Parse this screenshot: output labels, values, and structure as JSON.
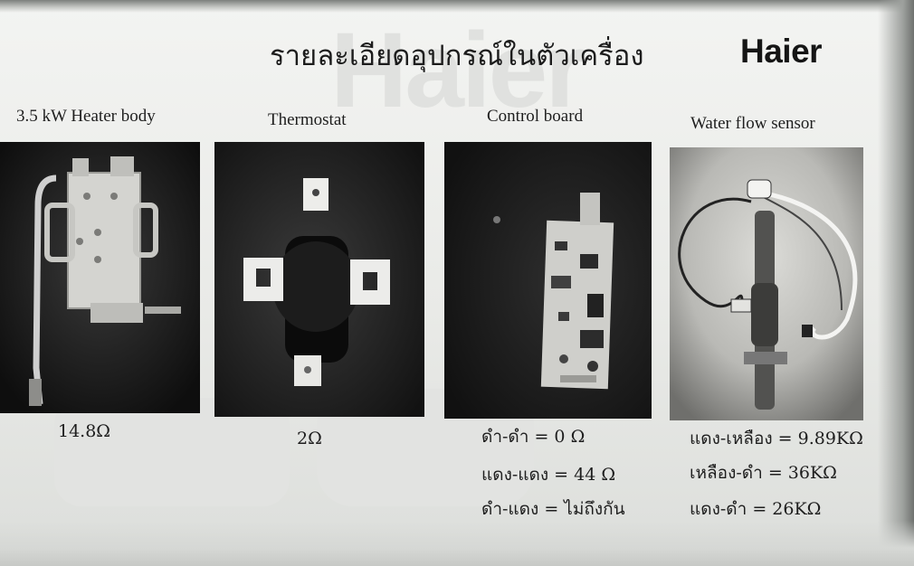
{
  "header": {
    "title": "รายละเอียดอุปกรณ์ในตัวเครื่อง",
    "logo_text": "Haier"
  },
  "watermark_text": "Haier",
  "components": [
    {
      "caption": "3.5 kW Heater body",
      "image": "heater-body-photo",
      "values": [
        "14.8Ω"
      ]
    },
    {
      "caption": "Thermostat",
      "image": "thermostat-photo",
      "values": [
        "2Ω"
      ]
    },
    {
      "caption": "Control board",
      "image": "control-board-photo",
      "values": [
        "ดำ-ดำ = 0 Ω",
        "แดง-แดง = 44 Ω",
        "ดำ-แดง = ไม่ถึงกัน"
      ]
    },
    {
      "caption": "Water flow sensor",
      "image": "water-flow-sensor-photo",
      "values": [
        "แดง-เหลือง = 9.89KΩ",
        "เหลือง-ดำ = 36KΩ",
        "แดง-ดำ = 26KΩ"
      ]
    }
  ]
}
